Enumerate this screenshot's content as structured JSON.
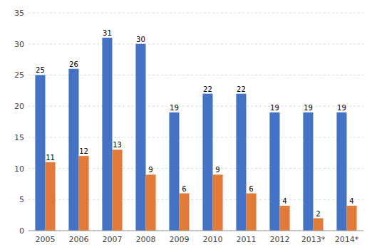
{
  "chart_data": {
    "type": "bar",
    "categories": [
      "2005",
      "2006",
      "2007",
      "2008",
      "2009",
      "2010",
      "2011",
      "2012",
      "2013*",
      "2014*"
    ],
    "series": [
      {
        "color": "#4472C4",
        "values": [
          25,
          26,
          31,
          30,
          19,
          22,
          22,
          19,
          19,
          19
        ]
      },
      {
        "color": "#E07B39",
        "values": [
          11,
          12,
          13,
          9,
          6,
          9,
          6,
          4,
          2,
          4
        ]
      }
    ],
    "ylim": [
      0,
      35
    ],
    "yticks": [
      0,
      5,
      10,
      15,
      20,
      25,
      30,
      35
    ],
    "grid": true,
    "data_labels": true
  }
}
